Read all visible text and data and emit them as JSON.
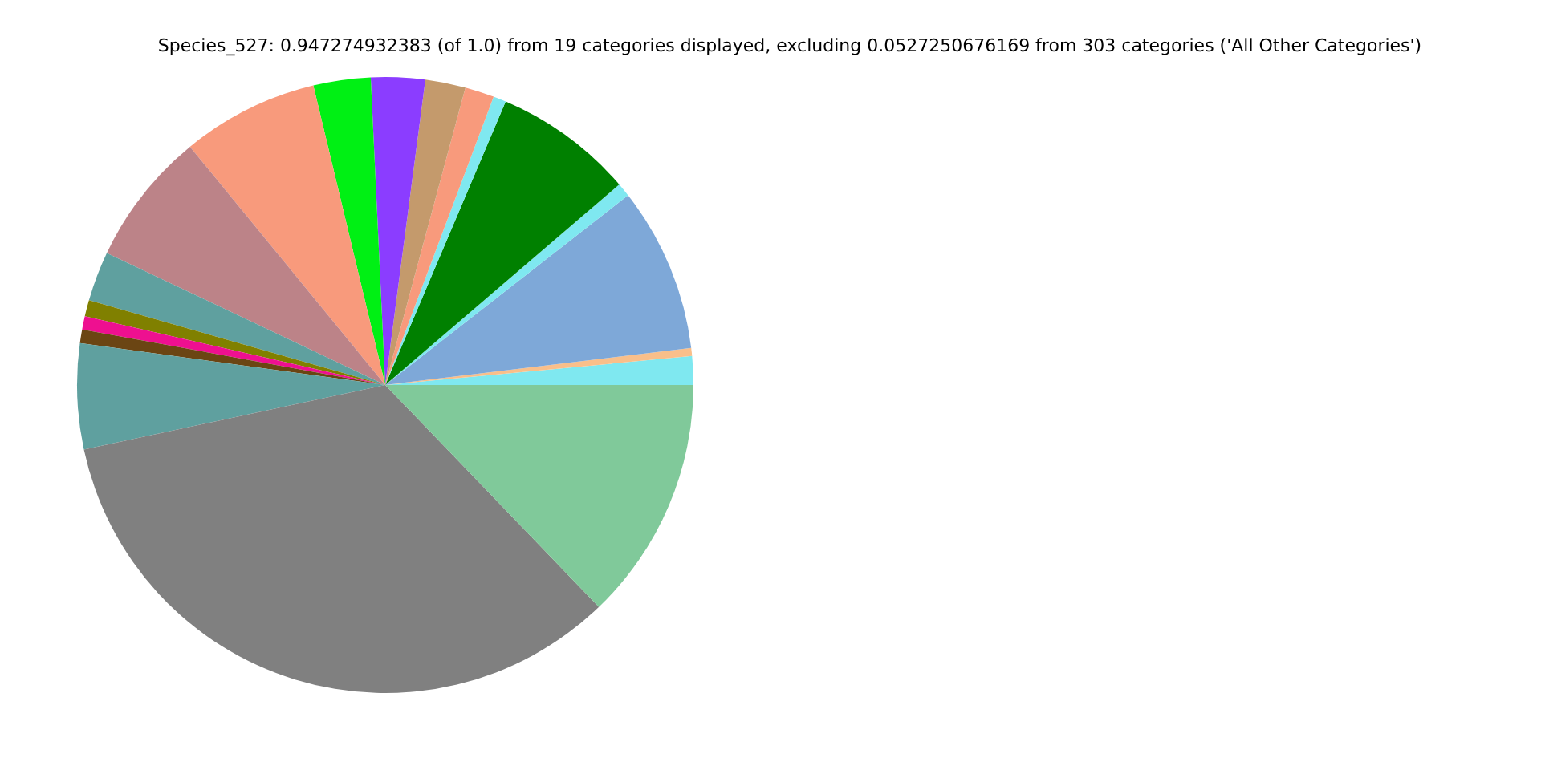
{
  "chart_data": {
    "type": "pie",
    "title": "Species_527: 0.947274932383 (of 1.0) from 19 categories displayed, excluding 0.0527250676169 from 303 categories ('All Other Categories')",
    "categories": [
      null,
      null,
      null,
      null,
      null,
      null,
      null,
      null,
      null,
      null,
      null,
      null,
      null,
      null,
      null,
      null,
      null,
      null,
      null
    ],
    "values": [
      1.5,
      0.42,
      8.64,
      0.72,
      7.33,
      0.67,
      1.53,
      2.11,
      2.83,
      3.0,
      7.17,
      7.03,
      2.61,
      0.86,
      0.69,
      0.72,
      5.53,
      33.83,
      12.81
    ],
    "colors": [
      "#7fe8f0",
      "#f9bf8a",
      "#7ea8d8",
      "#7fe8f0",
      "#008000",
      "#7fe8f0",
      "#f89a7c",
      "#c49a6c",
      "#8b3dff",
      "#00f014",
      "#f89a7c",
      "#bc8388",
      "#5fa09f",
      "#808000",
      "#ee1090",
      "#6b4513",
      "#5fa09f",
      "#808080",
      "#80c99a"
    ]
  }
}
